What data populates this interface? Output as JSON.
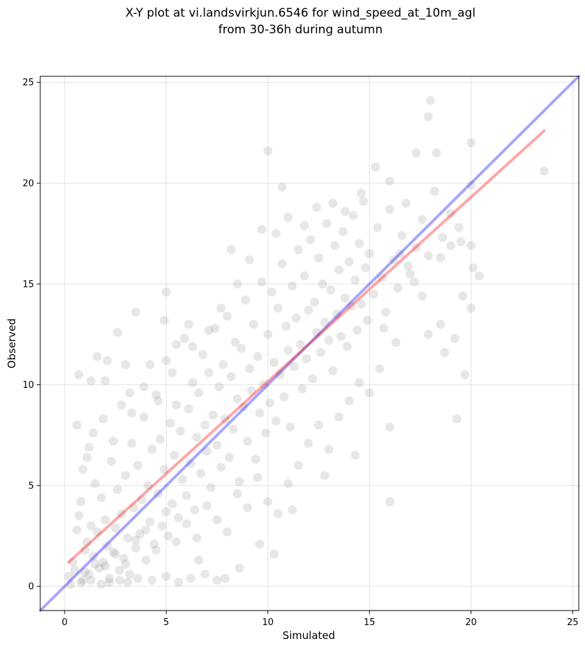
{
  "chart_data": {
    "type": "scatter",
    "title_lines": [
      "X-Y plot at vi.landsvirkjun.6546 for wind_speed_at_10m_agl",
      "from 30-36h during autumn"
    ],
    "xlabel": "Simulated",
    "ylabel": "Observed",
    "xlim": [
      -1.2,
      25.3
    ],
    "ylim": [
      -1.2,
      25.3
    ],
    "xticks": [
      "0",
      "5",
      "10",
      "15",
      "20",
      "25"
    ],
    "yticks": [
      "0",
      "5",
      "10",
      "15",
      "20",
      "25"
    ],
    "grid": true,
    "colors": {
      "points": "#555555",
      "identity_line": "#0000ff",
      "fit_line": "#ff0000"
    },
    "lines": [
      {
        "role": "identity",
        "x": [
          -1.2,
          25.3
        ],
        "y": [
          -1.2,
          25.3
        ]
      },
      {
        "role": "fit",
        "x": [
          0.2,
          23.6
        ],
        "y": [
          1.2,
          22.6
        ]
      }
    ],
    "points": [
      [
        0.2,
        0.5
      ],
      [
        0.4,
        1.2
      ],
      [
        0.5,
        0.8
      ],
      [
        0.6,
        2.8
      ],
      [
        0.7,
        3.5
      ],
      [
        0.8,
        4.2
      ],
      [
        0.9,
        0.3
      ],
      [
        1.0,
        1.8
      ],
      [
        1.1,
        2.2
      ],
      [
        1.2,
        0.6
      ],
      [
        1.3,
        3.0
      ],
      [
        1.4,
        1.5
      ],
      [
        1.5,
        5.1
      ],
      [
        1.6,
        2.7
      ],
      [
        1.7,
        0.9
      ],
      [
        1.8,
        4.4
      ],
      [
        1.9,
        1.2
      ],
      [
        2.0,
        3.3
      ],
      [
        2.1,
        2.0
      ],
      [
        2.2,
        0.4
      ],
      [
        2.3,
        6.2
      ],
      [
        2.4,
        1.7
      ],
      [
        2.5,
        2.9
      ],
      [
        2.6,
        4.8
      ],
      [
        2.7,
        0.8
      ],
      [
        2.8,
        3.6
      ],
      [
        2.9,
        1.4
      ],
      [
        3.0,
        5.5
      ],
      [
        3.1,
        2.4
      ],
      [
        3.2,
        0.6
      ],
      [
        3.3,
        7.1
      ],
      [
        3.4,
        3.9
      ],
      [
        3.5,
        1.9
      ],
      [
        3.6,
        6.0
      ],
      [
        3.7,
        2.6
      ],
      [
        3.8,
        4.3
      ],
      [
        3.9,
        8.4
      ],
      [
        4.0,
        1.3
      ],
      [
        4.1,
        5.0
      ],
      [
        4.2,
        3.2
      ],
      [
        4.3,
        6.8
      ],
      [
        4.4,
        2.1
      ],
      [
        4.5,
        9.5
      ],
      [
        4.6,
        4.6
      ],
      [
        4.7,
        7.3
      ],
      [
        4.8,
        3.0
      ],
      [
        4.9,
        5.8
      ],
      [
        5.0,
        11.2
      ],
      [
        5.1,
        2.5
      ],
      [
        5.2,
        8.1
      ],
      [
        5.3,
        4.1
      ],
      [
        5.4,
        6.5
      ],
      [
        5.5,
        9.0
      ],
      [
        5.6,
        3.4
      ],
      [
        5.7,
        7.7
      ],
      [
        5.8,
        5.3
      ],
      [
        5.9,
        12.3
      ],
      [
        6.0,
        4.5
      ],
      [
        6.1,
        8.8
      ],
      [
        6.2,
        6.1
      ],
      [
        6.3,
        10.1
      ],
      [
        6.4,
        3.8
      ],
      [
        6.5,
        7.4
      ],
      [
        6.6,
        9.6
      ],
      [
        6.7,
        5.6
      ],
      [
        6.8,
        11.5
      ],
      [
        6.9,
        8.0
      ],
      [
        7.0,
        6.7
      ],
      [
        7.1,
        10.6
      ],
      [
        7.2,
        4.9
      ],
      [
        7.3,
        8.5
      ],
      [
        7.4,
        12.8
      ],
      [
        7.5,
        7.0
      ],
      [
        7.6,
        9.9
      ],
      [
        7.7,
        5.9
      ],
      [
        7.8,
        11.0
      ],
      [
        7.9,
        8.3
      ],
      [
        8.0,
        13.4
      ],
      [
        8.1,
        6.4
      ],
      [
        8.2,
        10.4
      ],
      [
        8.3,
        7.8
      ],
      [
        8.4,
        12.1
      ],
      [
        8.5,
        9.3
      ],
      [
        8.6,
        5.2
      ],
      [
        8.7,
        11.8
      ],
      [
        8.8,
        8.9
      ],
      [
        8.9,
        14.2
      ],
      [
        9.0,
        7.2
      ],
      [
        9.1,
        10.8
      ],
      [
        9.2,
        9.7
      ],
      [
        9.3,
        13.0
      ],
      [
        9.4,
        6.3
      ],
      [
        9.5,
        11.4
      ],
      [
        9.6,
        8.6
      ],
      [
        9.7,
        15.1
      ],
      [
        9.8,
        10.0
      ],
      [
        9.9,
        7.6
      ],
      [
        10.0,
        12.5
      ],
      [
        10.1,
        9.1
      ],
      [
        10.2,
        14.6
      ],
      [
        10.3,
        11.1
      ],
      [
        10.4,
        8.2
      ],
      [
        10.5,
        13.8
      ],
      [
        10.6,
        10.5
      ],
      [
        10.7,
        16.0
      ],
      [
        10.8,
        9.4
      ],
      [
        10.9,
        12.9
      ],
      [
        11.0,
        11.7
      ],
      [
        11.1,
        7.9
      ],
      [
        11.2,
        14.9
      ],
      [
        11.3,
        10.9
      ],
      [
        11.4,
        13.3
      ],
      [
        11.5,
        16.7
      ],
      [
        11.6,
        12.0
      ],
      [
        11.7,
        9.8
      ],
      [
        11.8,
        15.4
      ],
      [
        11.9,
        11.3
      ],
      [
        12.0,
        13.7
      ],
      [
        12.1,
        17.2
      ],
      [
        12.2,
        10.3
      ],
      [
        12.3,
        14.1
      ],
      [
        12.4,
        12.6
      ],
      [
        12.5,
        16.3
      ],
      [
        12.6,
        11.6
      ],
      [
        12.7,
        15.0
      ],
      [
        12.8,
        13.1
      ],
      [
        12.9,
        18.0
      ],
      [
        13.0,
        12.2
      ],
      [
        13.1,
        14.7
      ],
      [
        13.2,
        10.7
      ],
      [
        13.3,
        16.9
      ],
      [
        13.4,
        13.5
      ],
      [
        13.5,
        15.7
      ],
      [
        13.6,
        12.4
      ],
      [
        13.7,
        17.6
      ],
      [
        13.8,
        14.3
      ],
      [
        13.9,
        11.9
      ],
      [
        14.0,
        16.1
      ],
      [
        14.1,
        13.9
      ],
      [
        14.2,
        18.4
      ],
      [
        14.3,
        15.2
      ],
      [
        14.4,
        12.7
      ],
      [
        14.5,
        17.0
      ],
      [
        14.6,
        14.0
      ],
      [
        14.7,
        19.1
      ],
      [
        14.8,
        15.8
      ],
      [
        14.9,
        13.2
      ],
      [
        15.0,
        16.5
      ],
      [
        15.2,
        14.5
      ],
      [
        15.4,
        17.8
      ],
      [
        15.6,
        15.3
      ],
      [
        15.8,
        13.6
      ],
      [
        16.0,
        18.7
      ],
      [
        16.2,
        16.2
      ],
      [
        16.4,
        14.8
      ],
      [
        16.6,
        17.4
      ],
      [
        16.8,
        19.0
      ],
      [
        17.0,
        15.5
      ],
      [
        17.3,
        16.8
      ],
      [
        17.6,
        18.2
      ],
      [
        17.9,
        16.4
      ],
      [
        18.2,
        19.6
      ],
      [
        18.6,
        17.3
      ],
      [
        19.0,
        18.5
      ],
      [
        19.5,
        17.1
      ],
      [
        20.0,
        19.9
      ],
      [
        0.3,
        0.1
      ],
      [
        0.8,
        0.2
      ],
      [
        1.3,
        0.3
      ],
      [
        1.8,
        0.1
      ],
      [
        2.2,
        0.2
      ],
      [
        2.7,
        0.3
      ],
      [
        3.1,
        0.2
      ],
      [
        3.6,
        0.4
      ],
      [
        4.3,
        0.3
      ],
      [
        5.0,
        0.5
      ],
      [
        5.6,
        0.2
      ],
      [
        6.2,
        0.4
      ],
      [
        6.9,
        0.6
      ],
      [
        7.5,
        0.3
      ],
      [
        1.0,
        0.7
      ],
      [
        1.5,
        1.1
      ],
      [
        2.0,
        1.0
      ],
      [
        2.5,
        1.6
      ],
      [
        3.0,
        1.1
      ],
      [
        3.5,
        2.3
      ],
      [
        4.0,
        2.8
      ],
      [
        4.5,
        1.8
      ],
      [
        5.0,
        3.7
      ],
      [
        5.5,
        2.2
      ],
      [
        6.0,
        3.1
      ],
      [
        6.5,
        2.4
      ],
      [
        7.0,
        4.0
      ],
      [
        7.5,
        3.3
      ],
      [
        8.0,
        2.7
      ],
      [
        8.5,
        4.6
      ],
      [
        9.0,
        3.9
      ],
      [
        9.5,
        5.4
      ],
      [
        10.0,
        4.2
      ],
      [
        10.5,
        3.6
      ],
      [
        11.0,
        5.1
      ],
      [
        11.5,
        6.0
      ],
      [
        12.0,
        7.1
      ],
      [
        12.5,
        8.0
      ],
      [
        13.0,
        6.8
      ],
      [
        13.5,
        8.4
      ],
      [
        14.0,
        9.2
      ],
      [
        14.5,
        10.1
      ],
      [
        15.0,
        9.6
      ],
      [
        15.5,
        10.8
      ],
      [
        16.0,
        7.9
      ],
      [
        16.0,
        4.2
      ],
      [
        14.3,
        6.5
      ],
      [
        12.8,
        5.5
      ],
      [
        10.3,
        1.6
      ],
      [
        9.6,
        2.1
      ],
      [
        11.2,
        3.8
      ],
      [
        8.6,
        0.9
      ],
      [
        7.9,
        0.4
      ],
      [
        6.6,
        1.3
      ],
      [
        2.6,
        12.6
      ],
      [
        3.5,
        13.6
      ],
      [
        4.2,
        11.0
      ],
      [
        1.6,
        11.4
      ],
      [
        2.0,
        10.2
      ],
      [
        3.2,
        9.6
      ],
      [
        5.0,
        14.6
      ],
      [
        6.1,
        13.0
      ],
      [
        4.9,
        13.2
      ],
      [
        5.5,
        12.0
      ],
      [
        10.0,
        21.6
      ],
      [
        10.7,
        19.8
      ],
      [
        15.3,
        20.8
      ],
      [
        16.0,
        20.1
      ],
      [
        17.3,
        21.5
      ],
      [
        18.3,
        21.5
      ],
      [
        20.0,
        22.0
      ],
      [
        18.0,
        24.1
      ],
      [
        17.9,
        23.3
      ],
      [
        23.6,
        20.6
      ],
      [
        19.3,
        8.3
      ],
      [
        19.7,
        10.5
      ],
      [
        20.0,
        13.8
      ],
      [
        20.1,
        15.8
      ],
      [
        20.4,
        15.4
      ],
      [
        19.6,
        14.4
      ],
      [
        18.5,
        13.0
      ],
      [
        18.7,
        11.6
      ],
      [
        19.2,
        12.3
      ],
      [
        20.0,
        16.9
      ],
      [
        1.1,
        6.4
      ],
      [
        1.4,
        7.6
      ],
      [
        1.9,
        8.3
      ],
      [
        2.4,
        7.2
      ],
      [
        0.9,
        5.8
      ],
      [
        1.2,
        6.9
      ],
      [
        2.8,
        9.0
      ],
      [
        3.3,
        8.6
      ],
      [
        3.9,
        9.9
      ],
      [
        0.6,
        8.0
      ],
      [
        0.7,
        10.5
      ],
      [
        1.3,
        10.2
      ],
      [
        2.1,
        11.2
      ],
      [
        3.0,
        11.0
      ],
      [
        4.6,
        9.2
      ],
      [
        5.3,
        10.6
      ],
      [
        6.3,
        11.9
      ],
      [
        7.1,
        12.7
      ],
      [
        7.7,
        13.8
      ],
      [
        8.5,
        15.0
      ],
      [
        9.1,
        16.2
      ],
      [
        8.2,
        16.7
      ],
      [
        9.7,
        17.7
      ],
      [
        10.4,
        17.5
      ],
      [
        11.0,
        18.3
      ],
      [
        11.8,
        17.9
      ],
      [
        12.4,
        18.8
      ],
      [
        13.2,
        19.0
      ],
      [
        13.8,
        18.6
      ],
      [
        14.6,
        19.5
      ],
      [
        16.5,
        16.5
      ],
      [
        16.9,
        15.9
      ],
      [
        17.2,
        15.1
      ],
      [
        17.6,
        14.4
      ],
      [
        17.9,
        12.5
      ],
      [
        18.5,
        16.3
      ],
      [
        19.0,
        16.9
      ],
      [
        19.4,
        17.8
      ],
      [
        16.3,
        12.1
      ],
      [
        15.7,
        12.8
      ]
    ]
  }
}
